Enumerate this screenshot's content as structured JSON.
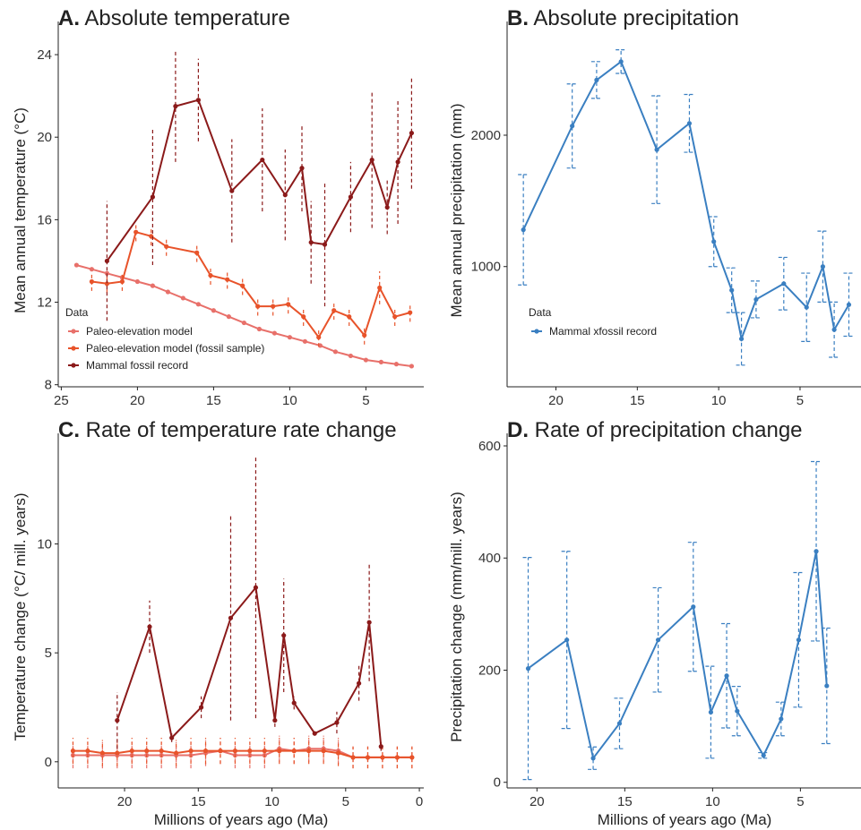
{
  "axis_labels": {
    "x": "Millions of years ago (Ma)"
  },
  "chart_data": [
    {
      "id": "A",
      "type": "line",
      "title_letter": "A.",
      "title": "Absolute temperature",
      "xlabel": "",
      "ylabel": "Mean annual temperature (°C)",
      "xlim": [
        25.2,
        1.2
      ],
      "ylim": [
        7.9,
        25.0
      ],
      "xticks": [
        25,
        20,
        15,
        10,
        5
      ],
      "yticks": [
        8,
        12,
        16,
        20,
        24
      ],
      "legend_title": "Data",
      "legend_position": "bottom-left",
      "series": [
        {
          "name": "Paleo-elevation model",
          "color": "#e8706a",
          "error_style": "dashed",
          "x": [
            24,
            23,
            22,
            21,
            20,
            19,
            18,
            17,
            16,
            15,
            14,
            13,
            12,
            11,
            10,
            9,
            8,
            7,
            6,
            5,
            4,
            3,
            2
          ],
          "y": [
            13.8,
            13.6,
            13.4,
            13.2,
            13.0,
            12.8,
            12.5,
            12.2,
            11.9,
            11.6,
            11.3,
            11.0,
            10.7,
            10.5,
            10.3,
            10.1,
            9.9,
            9.6,
            9.4,
            9.2,
            9.1,
            9.0,
            8.9
          ],
          "err": [
            0,
            0,
            0,
            0,
            0,
            0,
            0,
            0,
            0,
            0,
            0,
            0,
            0,
            0,
            0,
            0,
            0,
            0,
            0,
            0,
            0,
            0,
            0
          ]
        },
        {
          "name": "Paleo-elevation model (fossil sample)",
          "color": "#e8532a",
          "error_style": "dashed",
          "x": [
            23,
            22,
            21,
            20.1,
            19.1,
            18.1,
            16.1,
            15.2,
            14.1,
            13.1,
            12.1,
            11.1,
            10.1,
            9.1,
            8.1,
            7.1,
            6.1,
            5.1,
            4.1,
            3.1,
            2.1
          ],
          "y": [
            13.0,
            12.9,
            13.0,
            15.4,
            15.2,
            14.7,
            14.4,
            13.3,
            13.1,
            12.8,
            11.8,
            11.8,
            11.9,
            11.3,
            10.3,
            11.6,
            11.3,
            10.4,
            12.7,
            11.3,
            11.5
          ],
          "err": [
            0.45,
            0.45,
            0.45,
            0.45,
            0.45,
            0.45,
            0.45,
            0.45,
            0.45,
            0.45,
            0.45,
            0.45,
            0.45,
            0.45,
            0.45,
            0.45,
            0.45,
            0.45,
            0.8,
            0.45,
            0.45
          ]
        },
        {
          "name": "Mammal fossil record",
          "color": "#8b1a1a",
          "error_style": "dashed",
          "x": [
            22.0,
            19.0,
            17.5,
            16.0,
            13.8,
            11.8,
            10.3,
            9.2,
            8.6,
            7.7,
            6.0,
            4.6,
            3.6,
            2.9,
            2.0
          ],
          "y": [
            14.0,
            17.1,
            21.5,
            21.8,
            17.4,
            18.9,
            17.2,
            18.5,
            14.9,
            14.8,
            17.1,
            18.9,
            16.6,
            18.8,
            20.2
          ],
          "err": [
            2.9,
            3.3,
            2.7,
            2.0,
            2.5,
            2.5,
            2.2,
            2.1,
            2.0,
            3.0,
            1.7,
            3.3,
            1.3,
            3.0,
            2.7
          ]
        }
      ]
    },
    {
      "id": "B",
      "type": "line",
      "title_letter": "B.",
      "title": "Absolute precipitation",
      "xlabel": "",
      "ylabel": "Mean annual precipitation (mm)",
      "xlim": [
        23.0,
        1.2
      ],
      "ylim": [
        85,
        2770
      ],
      "xticks": [
        20,
        15,
        10,
        5
      ],
      "yticks": [
        1000,
        2000
      ],
      "legend_title": "Data",
      "legend_position": "bottom-left",
      "series": [
        {
          "name": "Mammal xfossil record",
          "color": "#3a7fc1",
          "error_style": "dashed-capped",
          "x": [
            22.0,
            19.0,
            17.5,
            16.0,
            13.8,
            11.8,
            10.3,
            9.2,
            8.6,
            7.7,
            6.0,
            4.6,
            3.6,
            2.9,
            2.0
          ],
          "y": [
            1280,
            2070,
            2420,
            2560,
            1890,
            2090,
            1190,
            820,
            450,
            750,
            870,
            690,
            1000,
            520,
            710
          ],
          "err": [
            420,
            320,
            140,
            90,
            410,
            220,
            190,
            170,
            200,
            140,
            200,
            260,
            270,
            210,
            240
          ]
        }
      ]
    },
    {
      "id": "C",
      "type": "line",
      "title_letter": "C.",
      "title": "Rate of temperature rate change",
      "xlabel": "Millions of years ago (Ma)",
      "ylabel": "Temperature change (°C/ mill. years)",
      "xlim": [
        24.5,
        -0.3
      ],
      "ylim": [
        -1.2,
        14.5
      ],
      "xticks": [
        20,
        15,
        10,
        5,
        0
      ],
      "yticks": [
        0,
        5,
        10
      ],
      "series": [
        {
          "name": "Paleo-elevation model",
          "color": "#e8706a",
          "error_style": "dashed",
          "x": [
            23.5,
            22.5,
            21.5,
            20.5,
            19.5,
            18.5,
            17.5,
            16.5,
            15.5,
            14.5,
            13.5,
            12.5,
            11.5,
            10.5,
            9.5,
            8.5,
            7.5,
            6.5,
            5.5,
            4.5,
            3.5,
            2.5,
            1.5,
            0.5
          ],
          "y": [
            0.3,
            0.3,
            0.3,
            0.3,
            0.3,
            0.3,
            0.3,
            0.3,
            0.3,
            0.4,
            0.5,
            0.3,
            0.3,
            0.3,
            0.6,
            0.5,
            0.6,
            0.6,
            0.5,
            0.2,
            0.2,
            0.2,
            0.2,
            0.2
          ],
          "err": [
            0.6,
            0.6,
            0.6,
            0.6,
            0.6,
            0.6,
            0.6,
            0.6,
            0.6,
            0.6,
            0.6,
            0.6,
            0.6,
            0.6,
            0.6,
            0.6,
            0.6,
            0.6,
            0.6,
            0.5,
            0.5,
            0.5,
            0.5,
            0.5
          ]
        },
        {
          "name": "Paleo-elevation model (fossil sample)",
          "color": "#e8532a",
          "error_style": "dashed",
          "x": [
            23.5,
            22.5,
            21.5,
            20.5,
            19.5,
            18.5,
            17.5,
            16.5,
            15.5,
            14.5,
            13.5,
            12.5,
            11.5,
            10.5,
            9.5,
            8.5,
            7.5,
            6.5,
            5.5,
            4.5,
            3.5,
            2.5,
            1.5,
            0.5
          ],
          "y": [
            0.5,
            0.5,
            0.4,
            0.4,
            0.5,
            0.5,
            0.5,
            0.4,
            0.5,
            0.5,
            0.5,
            0.5,
            0.5,
            0.5,
            0.5,
            0.5,
            0.5,
            0.5,
            0.4,
            0.2,
            0.2,
            0.2,
            0.2,
            0.2
          ],
          "err": [
            0.6,
            0.6,
            0.6,
            0.6,
            0.6,
            0.6,
            0.6,
            0.6,
            0.6,
            0.6,
            0.6,
            0.6,
            0.6,
            0.6,
            0.6,
            0.6,
            0.6,
            0.6,
            0.6,
            0.5,
            0.5,
            0.5,
            0.5,
            0.5
          ]
        },
        {
          "name": "Mammal fossil record",
          "color": "#8b1a1a",
          "error_style": "dashed",
          "x": [
            20.5,
            18.3,
            16.8,
            14.8,
            12.8,
            11.1,
            9.8,
            9.2,
            8.5,
            7.1,
            5.6,
            4.1,
            3.4,
            2.6
          ],
          "y": [
            1.9,
            6.2,
            1.1,
            2.5,
            6.6,
            8.0,
            1.9,
            5.8,
            2.7,
            1.3,
            1.8,
            3.6,
            6.4,
            0.7
          ],
          "err": [
            1.3,
            1.2,
            0.2,
            0.5,
            4.7,
            6.0,
            0.3,
            2.6,
            0.3,
            0.1,
            0.5,
            0.8,
            2.7,
            0.2
          ]
        }
      ]
    },
    {
      "id": "D",
      "type": "line",
      "title_letter": "D.",
      "title": "Rate of precipitation change",
      "xlabel": "Millions of years ago (Ma)",
      "ylabel": "Precipitation change (mm/mill. years)",
      "xlim": [
        21.7,
        1.5
      ],
      "ylim": [
        -10,
        600
      ],
      "xticks": [
        20,
        15,
        10,
        5
      ],
      "yticks": [
        0,
        200,
        400,
        600
      ],
      "series": [
        {
          "name": "Mammal xfossil record",
          "color": "#3a7fc1",
          "error_style": "dashed-capped",
          "x": [
            20.5,
            18.3,
            16.8,
            15.3,
            13.1,
            11.1,
            10.1,
            9.2,
            8.6,
            7.1,
            6.1,
            5.1,
            4.1,
            3.5
          ],
          "y": [
            203,
            254,
            43,
            105,
            254,
            313,
            125,
            190,
            127,
            48,
            113,
            254,
            412,
            172
          ],
          "err": [
            198,
            158,
            20,
            45,
            93,
            115,
            82,
            93,
            44,
            5,
            30,
            120,
            160,
            103
          ]
        }
      ]
    }
  ]
}
